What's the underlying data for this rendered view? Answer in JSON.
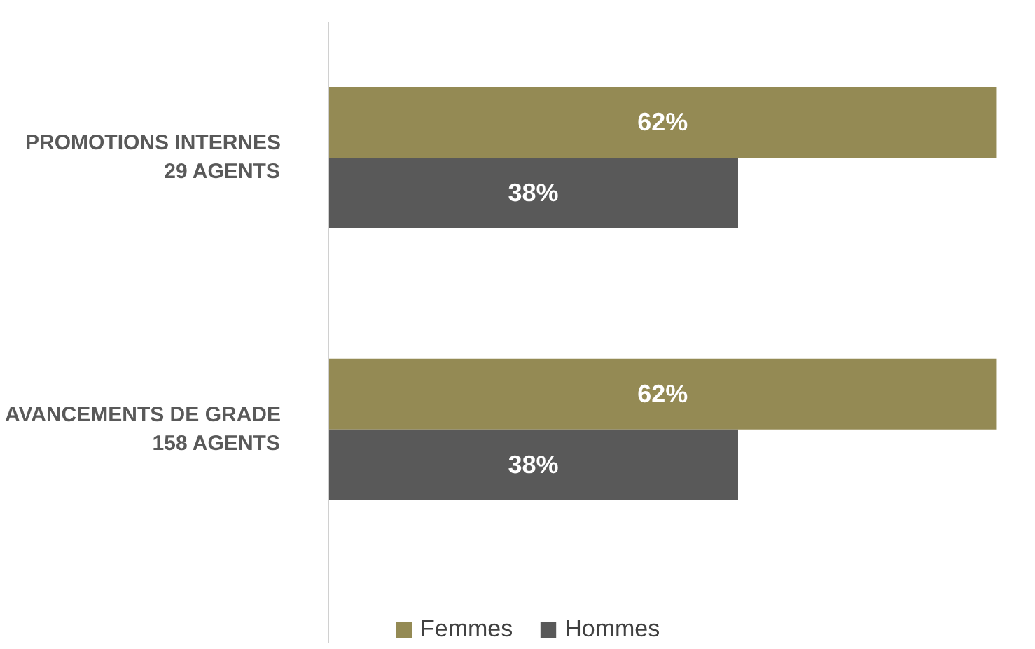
{
  "chart_data": {
    "type": "bar",
    "orientation": "horizontal",
    "categories": [
      "PROMOTIONS INTERNES\n29 AGENTS",
      "AVANCEMENTS DE GRADE\n158 AGENTS"
    ],
    "series": [
      {
        "name": "Femmes",
        "color": "#948a54",
        "values": [
          62,
          62
        ],
        "value_labels": [
          "62%",
          "62%"
        ]
      },
      {
        "name": "Hommes",
        "color": "#595959",
        "values": [
          38,
          38
        ],
        "value_labels": [
          "38%",
          "38%"
        ]
      }
    ],
    "legend": "bottom"
  }
}
